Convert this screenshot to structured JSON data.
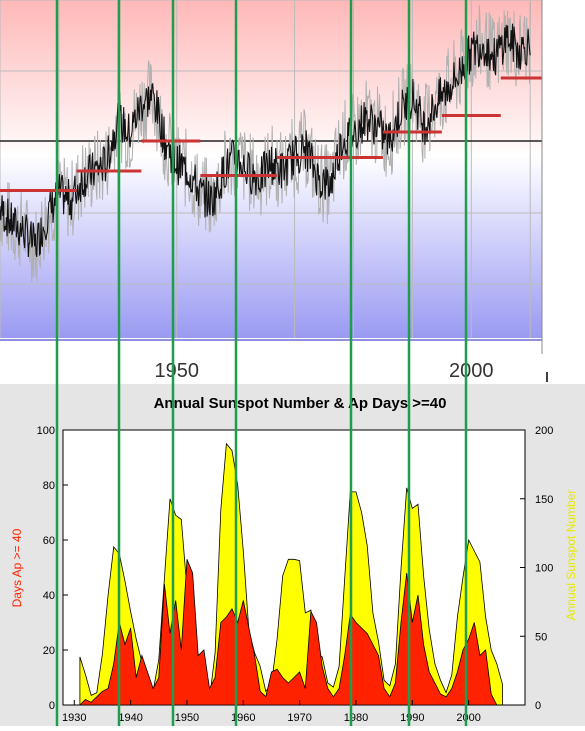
{
  "chart_data": [
    {
      "type": "line",
      "title": "",
      "xlabel": "",
      "ylabel": "",
      "x_tick_labels": [
        "1950",
        "2000"
      ],
      "xlim": [
        1920,
        2012
      ],
      "ylim": [
        -1,
        1
      ],
      "grid": true,
      "series": [
        {
          "role": "noisy-signal",
          "color": "#111111",
          "x": [
            1920,
            1922,
            1924,
            1926,
            1928,
            1930,
            1932,
            1934,
            1936,
            1938,
            1940,
            1942,
            1944,
            1946,
            1948,
            1950,
            1952,
            1954,
            1956,
            1958,
            1960,
            1962,
            1964,
            1966,
            1968,
            1970,
            1972,
            1974,
            1976,
            1978,
            1980,
            1982,
            1984,
            1986,
            1988,
            1990,
            1992,
            1994,
            1996,
            1998,
            2000,
            2002,
            2004,
            2006,
            2008,
            2010
          ],
          "y": [
            -0.45,
            -0.55,
            -0.6,
            -0.7,
            -0.5,
            -0.35,
            -0.4,
            -0.25,
            -0.2,
            -0.15,
            0.15,
            0.05,
            0.25,
            0.3,
            0.0,
            -0.15,
            -0.2,
            -0.35,
            -0.4,
            -0.2,
            -0.1,
            -0.2,
            -0.25,
            -0.15,
            -0.2,
            -0.1,
            -0.05,
            -0.25,
            -0.3,
            0.0,
            0.05,
            0.15,
            0.1,
            0.0,
            0.2,
            0.3,
            0.1,
            0.25,
            0.35,
            0.45,
            0.6,
            0.65,
            0.55,
            0.7,
            0.6,
            0.65
          ]
        },
        {
          "role": "step-means",
          "color": "#cc3333",
          "segments": [
            {
              "x": [
                1920,
                1933
              ],
              "y": -0.33
            },
            {
              "x": [
                1933,
                1944
              ],
              "y": -0.2
            },
            {
              "x": [
                1944,
                1954
              ],
              "y": 0.0
            },
            {
              "x": [
                1954,
                1967
              ],
              "y": -0.23
            },
            {
              "x": [
                1967,
                1985
              ],
              "y": -0.11
            },
            {
              "x": [
                1985,
                1995
              ],
              "y": 0.06
            },
            {
              "x": [
                1995,
                2005
              ],
              "y": 0.17
            },
            {
              "x": [
                2005,
                2012
              ],
              "y": 0.42
            }
          ]
        }
      ]
    },
    {
      "type": "area",
      "title": "Annual Sunspot Number & Ap Days >=40",
      "xlabel": "",
      "ylabel": "Days Ap >= 40",
      "ylabel_right": "Annual Sunspot Number",
      "xlim": [
        1928,
        2010
      ],
      "ylim": [
        0,
        100
      ],
      "ylim_right": [
        0,
        200
      ],
      "x_ticks": [
        1930,
        1940,
        1950,
        1960,
        1970,
        1980,
        1990,
        2000
      ],
      "y_ticks": [
        0,
        20,
        40,
        60,
        80,
        100
      ],
      "y_ticks_right": [
        0,
        50,
        100,
        150,
        200
      ],
      "legend": "none",
      "series": [
        {
          "name": "Annual Sunspot Number",
          "color": "#ffff00",
          "axis": "right",
          "x": [
            1931,
            1932,
            1933,
            1934,
            1935,
            1936,
            1937,
            1938,
            1939,
            1940,
            1941,
            1942,
            1943,
            1944,
            1945,
            1946,
            1947,
            1948,
            1949,
            1950,
            1951,
            1952,
            1953,
            1954,
            1955,
            1956,
            1957,
            1958,
            1959,
            1960,
            1961,
            1962,
            1963,
            1964,
            1965,
            1966,
            1967,
            1968,
            1969,
            1970,
            1971,
            1972,
            1973,
            1974,
            1975,
            1976,
            1977,
            1978,
            1979,
            1980,
            1981,
            1982,
            1983,
            1984,
            1985,
            1986,
            1987,
            1988,
            1989,
            1990,
            1991,
            1992,
            1993,
            1994,
            1995,
            1996,
            1997,
            1998,
            1999,
            2000,
            2001,
            2002,
            2003,
            2004,
            2005,
            2006
          ],
          "y": [
            35,
            22,
            7,
            9,
            37,
            80,
            115,
            110,
            90,
            68,
            48,
            31,
            16,
            10,
            33,
            92,
            150,
            138,
            135,
            84,
            70,
            32,
            14,
            4,
            38,
            142,
            190,
            185,
            160,
            112,
            54,
            38,
            28,
            10,
            15,
            48,
            94,
            106,
            106,
            105,
            67,
            69,
            38,
            35,
            16,
            13,
            28,
            92,
            155,
            155,
            140,
            116,
            67,
            46,
            18,
            14,
            30,
            99,
            158,
            143,
            146,
            94,
            55,
            30,
            18,
            9,
            22,
            64,
            93,
            120,
            112,
            104,
            64,
            40,
            30,
            15
          ]
        },
        {
          "name": "Days Ap >= 40",
          "color": "#ff2200",
          "axis": "left",
          "x": [
            1931,
            1932,
            1933,
            1934,
            1935,
            1936,
            1937,
            1938,
            1939,
            1940,
            1941,
            1942,
            1943,
            1944,
            1945,
            1946,
            1947,
            1948,
            1949,
            1950,
            1951,
            1952,
            1953,
            1954,
            1955,
            1956,
            1957,
            1958,
            1959,
            1960,
            1961,
            1962,
            1963,
            1964,
            1965,
            1966,
            1967,
            1968,
            1969,
            1970,
            1971,
            1972,
            1973,
            1974,
            1975,
            1976,
            1977,
            1978,
            1979,
            1980,
            1981,
            1982,
            1983,
            1984,
            1985,
            1986,
            1987,
            1988,
            1989,
            1990,
            1991,
            1992,
            1993,
            1994,
            1995,
            1996,
            1997,
            1998,
            1999,
            2000,
            2001,
            2002,
            2003,
            2004,
            2005,
            2006
          ],
          "y": [
            0,
            2,
            1,
            3,
            5,
            6,
            15,
            30,
            22,
            28,
            10,
            18,
            12,
            6,
            10,
            44,
            26,
            38,
            20,
            53,
            48,
            18,
            20,
            6,
            10,
            30,
            32,
            35,
            30,
            38,
            28,
            18,
            5,
            3,
            12,
            13,
            10,
            8,
            10,
            12,
            6,
            34,
            30,
            14,
            6,
            3,
            6,
            18,
            33,
            30,
            28,
            26,
            22,
            18,
            6,
            3,
            8,
            30,
            48,
            30,
            40,
            22,
            12,
            8,
            4,
            3,
            6,
            12,
            20,
            24,
            30,
            18,
            20,
            4,
            0,
            0
          ]
        }
      ]
    }
  ]
}
